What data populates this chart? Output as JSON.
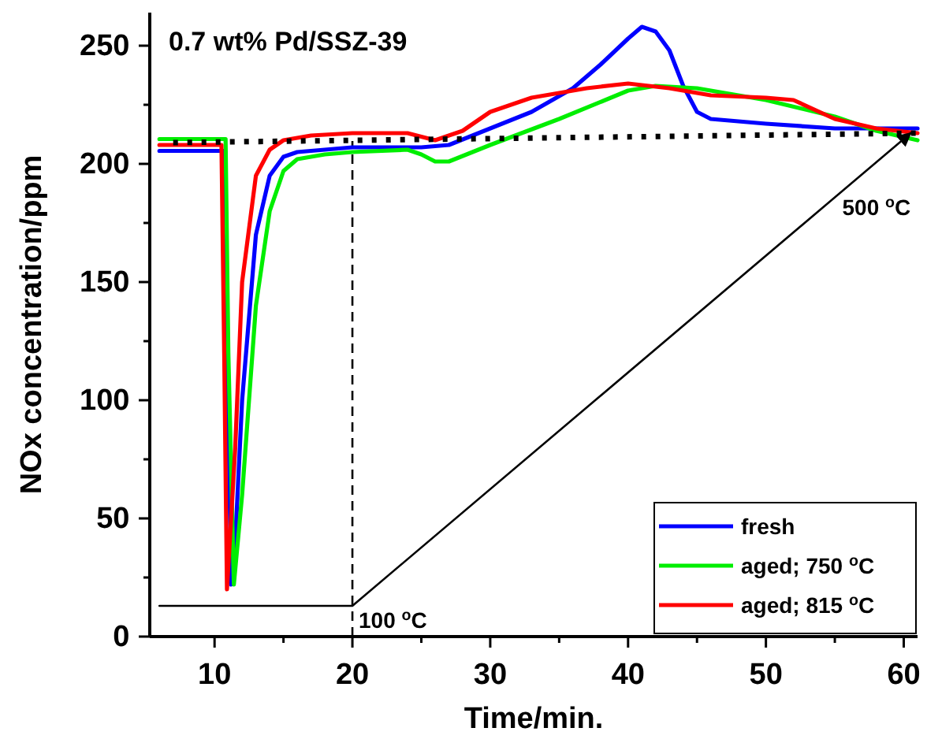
{
  "chart_data": {
    "type": "line",
    "title": "0.7 wt% Pd/SSZ-39",
    "xlabel": "Time/min.",
    "ylabel": "NOx concentration/ppm",
    "xlim": [
      5.3,
      61
    ],
    "ylim": [
      0,
      264
    ],
    "xticks": [
      10,
      {
        "value": 15,
        "label": null
      },
      20,
      {
        "value": 25,
        "label": null
      },
      30,
      {
        "value": 35,
        "label": null
      },
      40,
      {
        "value": 45,
        "label": null
      },
      50,
      {
        "value": 55,
        "label": null
      },
      60
    ],
    "yticks": [
      0,
      {
        "value": 25,
        "label": null
      },
      50,
      {
        "value": 75,
        "label": null
      },
      100,
      {
        "value": 125,
        "label": null
      },
      150,
      {
        "value": 175,
        "label": null
      },
      200,
      {
        "value": 225,
        "label": null
      },
      250
    ],
    "legend": "bottom right",
    "grid": false,
    "ref_lines": [
      {
        "axis": "x",
        "value": 20,
        "line_style": "dashed",
        "color": "#000000"
      }
    ],
    "annotations": [
      {
        "text": "100 $^{o}$C",
        "x": 20,
        "y": 13
      },
      {
        "text": "500 $^{o}$C",
        "x": 60.5,
        "y": 213
      }
    ],
    "series": [
      {
        "name": "fresh",
        "color": "#0000ff",
        "x": [
          6,
          8,
          10,
          10.7,
          11.2,
          11.5,
          12,
          13,
          14,
          15,
          16,
          18,
          20,
          25,
          27,
          30,
          33,
          36,
          38,
          40,
          41,
          42,
          43,
          44,
          45,
          46,
          50,
          55,
          61
        ],
        "values": [
          205.5,
          205.5,
          205.5,
          205.5,
          22,
          40,
          100,
          170,
          195,
          203,
          205,
          206,
          207,
          207,
          208,
          215,
          222,
          232,
          242,
          253,
          258,
          256,
          248,
          233,
          222,
          219,
          217,
          215,
          215
        ]
      },
      {
        "name": "aged; 750 $^{o}$C",
        "color": "#00ee00",
        "x": [
          6,
          8,
          10,
          10.8,
          11.0,
          11.4,
          12,
          13,
          14,
          15,
          16,
          18,
          20,
          24,
          25,
          26,
          27,
          30,
          35,
          40,
          42,
          45,
          50,
          55,
          58,
          61
        ],
        "values": [
          210.5,
          210.5,
          210.5,
          210.5,
          120,
          22,
          60,
          140,
          180,
          197,
          202,
          204,
          205,
          206,
          204,
          201,
          201,
          208,
          219,
          231,
          233,
          232,
          227,
          220,
          214,
          210
        ]
      },
      {
        "name": "aged; 815 $^{o}$C",
        "color": "#ff0000",
        "x": [
          6,
          8,
          10,
          10.5,
          10.7,
          10.9,
          11.5,
          12,
          13,
          14,
          15,
          17,
          20,
          24,
          26,
          28,
          30,
          33,
          37,
          40,
          43,
          46,
          50,
          52,
          55,
          58,
          61
        ],
        "values": [
          208,
          208,
          208,
          208,
          120,
          20,
          80,
          150,
          195,
          206,
          210,
          212,
          213,
          213,
          210,
          214,
          222,
          228,
          232,
          234,
          232,
          229,
          228,
          227,
          219,
          215,
          213
        ]
      },
      {
        "color": "#000000",
        "line_style": "dotted",
        "x": [
          7,
          61
        ],
        "values": [
          209,
          213
        ]
      },
      {
        "color": "#000000",
        "x": [
          6,
          20,
          60.5
        ],
        "values": [
          13,
          13,
          213
        ]
      }
    ]
  }
}
